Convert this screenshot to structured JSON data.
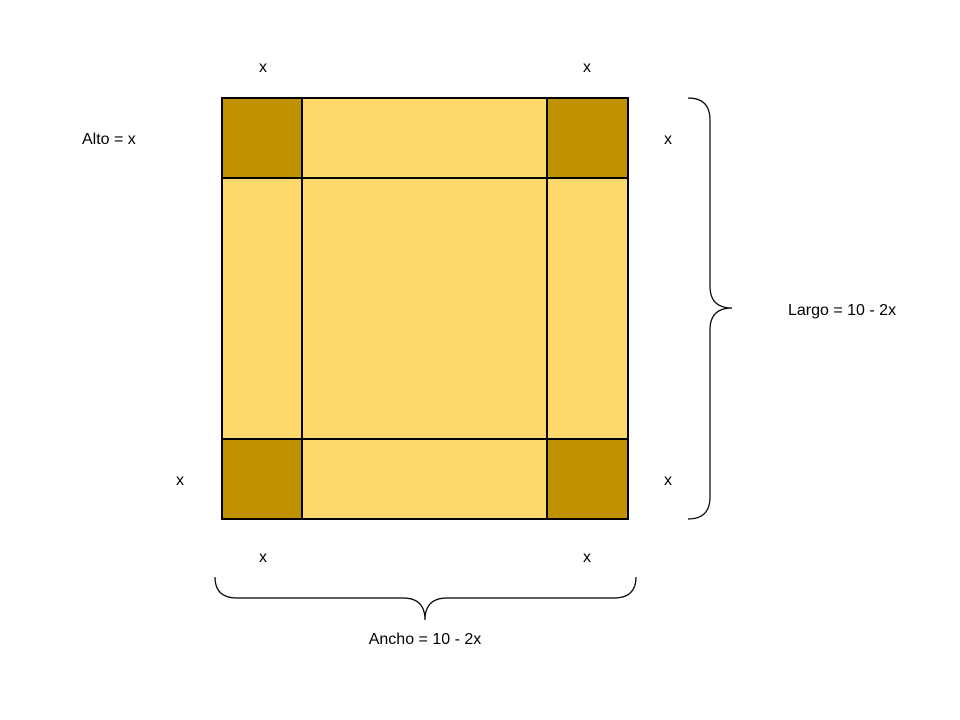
{
  "colors": {
    "panel": "#fdd96b",
    "corner": "#c09100",
    "outline": "#000000",
    "background": "#ffffff"
  },
  "labels": {
    "alto": "Alto = x",
    "largo": "Largo = 10 - 2x",
    "ancho": "Ancho = 10 - 2x",
    "x": "x"
  }
}
